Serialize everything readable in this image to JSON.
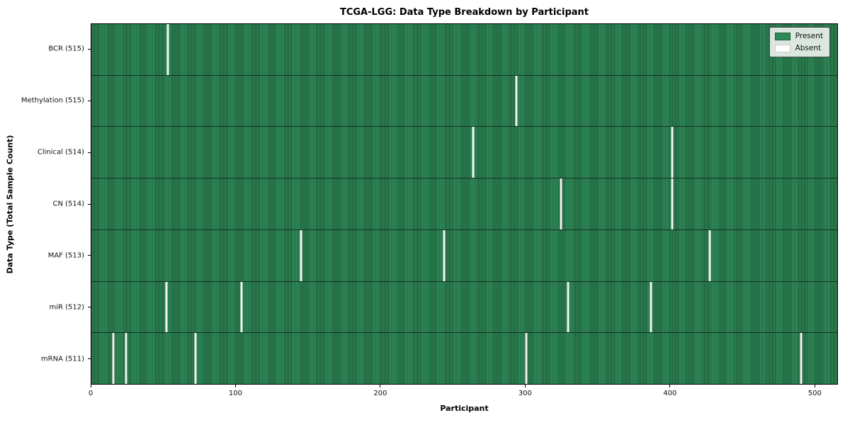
{
  "chart_data": {
    "type": "heatmap",
    "title": "TCGA-LGG: Data Type Breakdown by Participant",
    "xlabel": "Participant",
    "ylabel": "Data Type (Total Sample Count)",
    "xlim": [
      0,
      516
    ],
    "n_participants": 516,
    "x_ticks": [
      0,
      100,
      200,
      300,
      400,
      500
    ],
    "grid": false,
    "legend_position": "upper right",
    "colors": {
      "present": "#2e8b57",
      "absent": "#ffffff",
      "row_separator": "#142e1e"
    },
    "legend": [
      {
        "label": "Present",
        "color": "#2e8b57"
      },
      {
        "label": "Absent",
        "color": "#ffffff"
      }
    ],
    "rows": [
      {
        "label": "BCR (515)",
        "data_type": "BCR",
        "present_count": 515,
        "absent_participants": [
          53
        ]
      },
      {
        "label": "Methylation (515)",
        "data_type": "Methylation",
        "present_count": 515,
        "absent_participants": [
          294
        ]
      },
      {
        "label": "Clinical (514)",
        "data_type": "Clinical",
        "present_count": 514,
        "absent_participants": [
          264,
          402
        ]
      },
      {
        "label": "CN (514)",
        "data_type": "CN",
        "present_count": 514,
        "absent_participants": [
          325,
          402
        ]
      },
      {
        "label": "MAF (513)",
        "data_type": "MAF",
        "present_count": 513,
        "absent_participants": [
          145,
          244,
          428
        ]
      },
      {
        "label": "miR (512)",
        "data_type": "miR",
        "present_count": 512,
        "absent_participants": [
          52,
          104,
          330,
          387
        ]
      },
      {
        "label": "mRNA (511)",
        "data_type": "mRNA",
        "present_count": 511,
        "absent_participants": [
          15,
          24,
          72,
          301,
          491
        ]
      }
    ]
  }
}
